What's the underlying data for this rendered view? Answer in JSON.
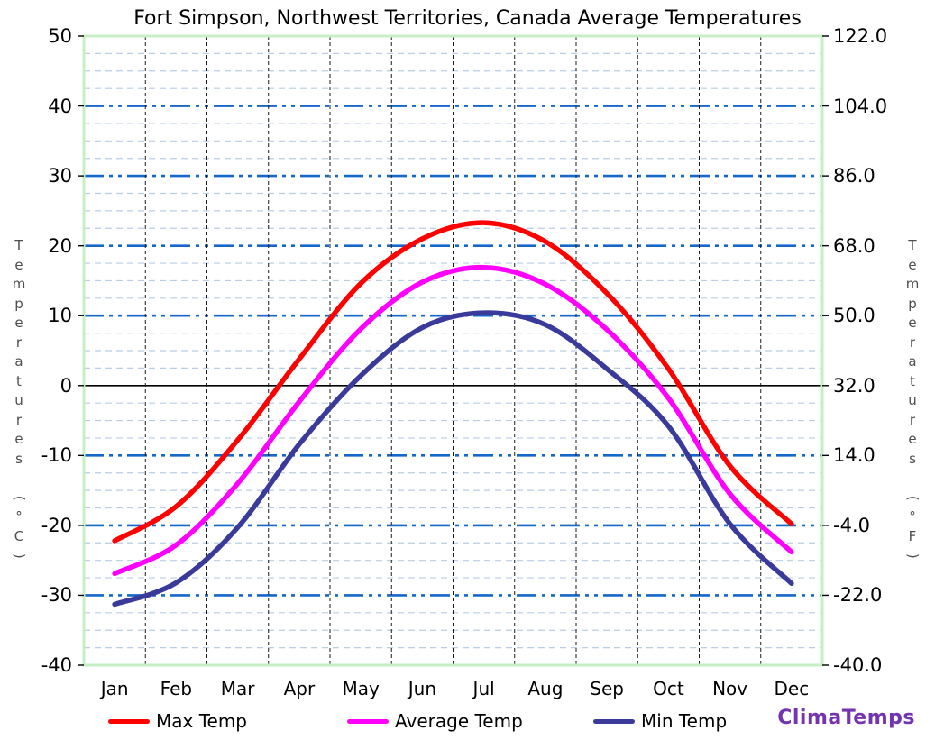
{
  "title": "Fort Simpson, Northwest Territories, Canada Average Temperatures",
  "logo_text": "ClimaTemps",
  "axes": {
    "left_title": "Temperatures (°C)",
    "right_title": "Temperatures (°F)",
    "left_ticks": [
      "50",
      "40",
      "30",
      "20",
      "10",
      "0",
      "-10",
      "-20",
      "-30",
      "-40"
    ],
    "left_tick_values": [
      50,
      40,
      30,
      20,
      10,
      0,
      -10,
      -20,
      -30,
      -40
    ],
    "right_ticks": [
      "122.0",
      "104.0",
      "86.0",
      "68.0",
      "50.0",
      "32.0",
      "14.0",
      "-4.0",
      "-22.0",
      "-40.0"
    ]
  },
  "legend": [
    {
      "label": "Max Temp",
      "color": "#FF0000"
    },
    {
      "label": "Average Temp",
      "color": "#FF00FF"
    },
    {
      "label": "Min Temp",
      "color": "#3A3A9A"
    }
  ],
  "colors": {
    "max_line": "#FF0000",
    "avg_line": "#FF00FF",
    "min_line": "#3A3A9A",
    "major_grid": "#1568C9",
    "minor_grid": "#B9CDE5",
    "zero_line": "#000000",
    "month_line": "#1a1a1a",
    "plot_border": "#C6EFC6",
    "logo": "#7433B0"
  },
  "chart_data": {
    "type": "line",
    "title": "Fort Simpson, Northwest Territories, Canada Average Temperatures",
    "categories": [
      "Jan",
      "Feb",
      "Mar",
      "Apr",
      "May",
      "Jun",
      "Jul",
      "Aug",
      "Sep",
      "Oct",
      "Nov",
      "Dec"
    ],
    "series": [
      {
        "name": "Max Temp",
        "color": "#FF0000",
        "values": [
          -22.2,
          -17.3,
          -7.8,
          3.8,
          14.6,
          21.0,
          23.3,
          20.6,
          13.2,
          2.4,
          -11.5,
          -19.8
        ]
      },
      {
        "name": "Average Temp",
        "color": "#FF00FF",
        "values": [
          -26.9,
          -22.8,
          -14.0,
          -2.3,
          8.1,
          14.8,
          16.9,
          14.5,
          8.0,
          -1.8,
          -15.5,
          -23.8
        ]
      },
      {
        "name": "Min Temp",
        "color": "#3A3A9A",
        "values": [
          -31.3,
          -28.2,
          -20.3,
          -8.4,
          1.4,
          8.3,
          10.4,
          8.7,
          2.4,
          -5.8,
          -19.8,
          -28.3
        ]
      }
    ],
    "xlabel": "",
    "ylabel_left": "Temperatures (°C)",
    "ylabel_right": "Temperatures (°F)",
    "ylim_c": [
      -40,
      50
    ],
    "ylim_f": [
      -40.0,
      122.0
    ],
    "major_grid_step_c": 10,
    "minor_grid_step_c": 2.5,
    "grid": true,
    "legend_position": "bottom"
  }
}
